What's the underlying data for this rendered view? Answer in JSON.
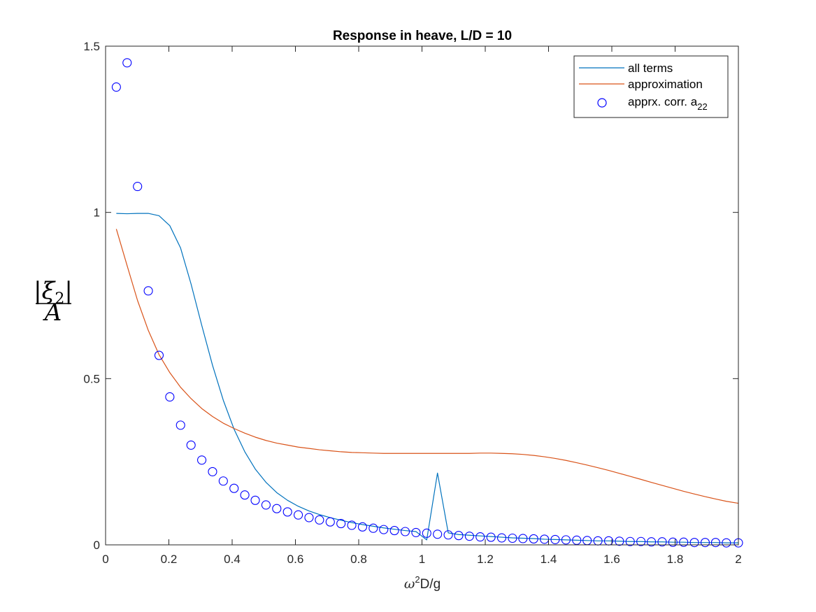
{
  "chart_data": {
    "type": "line",
    "title": "Response in heave, L/D = 10",
    "xlabel": {
      "base": "ω",
      "sup": "2",
      "rest": "D/g"
    },
    "ylabel": {
      "num_left": "|",
      "num_sym": "ξ",
      "num_sub": "2",
      "num_right": "|",
      "den": "A"
    },
    "xlim": [
      0,
      2
    ],
    "ylim": [
      0,
      1.5
    ],
    "xticks": [
      0,
      0.2,
      0.4,
      0.6,
      0.8,
      1,
      1.2,
      1.4,
      1.6,
      1.8,
      2
    ],
    "xtick_labels": [
      "0",
      "0.2",
      "0.4",
      "0.6",
      "0.8",
      "1",
      "1.2",
      "1.4",
      "1.6",
      "1.8",
      "2"
    ],
    "yticks": [
      0,
      0.5,
      1,
      1.5
    ],
    "ytick_labels": [
      "0",
      "0.5",
      "1",
      "1.5"
    ],
    "grid": false,
    "legend_position": "top-right",
    "series": [
      {
        "name": "all terms",
        "style": "line",
        "color": "#0072bd",
        "x": [
          0.034,
          0.068,
          0.101,
          0.135,
          0.169,
          0.203,
          0.237,
          0.27,
          0.304,
          0.338,
          0.372,
          0.406,
          0.44,
          0.473,
          0.507,
          0.541,
          0.575,
          0.609,
          0.643,
          0.676,
          0.71,
          0.744,
          0.778,
          0.812,
          0.846,
          0.879,
          0.913,
          0.947,
          0.981,
          1.015,
          1.049,
          1.083,
          1.116,
          1.15,
          1.184,
          1.218,
          1.252,
          1.286,
          1.319,
          1.353,
          1.387,
          1.421,
          1.455,
          1.489,
          1.522,
          1.556,
          1.59,
          1.624,
          1.658,
          1.692,
          1.725,
          1.759,
          1.793,
          1.827,
          1.861,
          1.895,
          1.928,
          1.962,
          2.0
        ],
        "y": [
          0.997,
          0.996,
          0.997,
          0.997,
          0.99,
          0.96,
          0.893,
          0.785,
          0.66,
          0.54,
          0.435,
          0.348,
          0.28,
          0.228,
          0.188,
          0.157,
          0.134,
          0.116,
          0.102,
          0.091,
          0.082,
          0.074,
          0.067,
          0.061,
          0.056,
          0.051,
          0.047,
          0.043,
          0.04,
          0.015,
          0.216,
          0.036,
          0.031,
          0.029,
          0.027,
          0.025,
          0.023,
          0.021,
          0.02,
          0.019,
          0.017,
          0.016,
          0.015,
          0.014,
          0.013,
          0.012,
          0.012,
          0.011,
          0.01,
          0.01,
          0.009,
          0.009,
          0.008,
          0.008,
          0.007,
          0.007,
          0.007,
          0.006,
          0.006
        ]
      },
      {
        "name": "approximation",
        "style": "line",
        "color": "#d95319",
        "x": [
          0.034,
          0.068,
          0.101,
          0.135,
          0.169,
          0.203,
          0.237,
          0.27,
          0.304,
          0.338,
          0.372,
          0.406,
          0.44,
          0.473,
          0.507,
          0.541,
          0.575,
          0.609,
          0.643,
          0.676,
          0.71,
          0.744,
          0.778,
          0.812,
          0.846,
          0.879,
          0.913,
          0.947,
          0.981,
          1.015,
          1.049,
          1.083,
          1.116,
          1.15,
          1.184,
          1.218,
          1.252,
          1.286,
          1.319,
          1.353,
          1.387,
          1.421,
          1.455,
          1.489,
          1.522,
          1.556,
          1.59,
          1.624,
          1.658,
          1.692,
          1.725,
          1.759,
          1.793,
          1.827,
          1.861,
          1.895,
          1.928,
          1.962,
          2.0
        ],
        "y": [
          0.95,
          0.84,
          0.735,
          0.645,
          0.572,
          0.518,
          0.474,
          0.44,
          0.41,
          0.386,
          0.366,
          0.35,
          0.336,
          0.324,
          0.314,
          0.306,
          0.3,
          0.294,
          0.29,
          0.286,
          0.283,
          0.28,
          0.278,
          0.277,
          0.276,
          0.275,
          0.275,
          0.275,
          0.275,
          0.275,
          0.275,
          0.275,
          0.275,
          0.275,
          0.276,
          0.276,
          0.275,
          0.274,
          0.272,
          0.269,
          0.265,
          0.26,
          0.254,
          0.247,
          0.24,
          0.232,
          0.224,
          0.215,
          0.206,
          0.197,
          0.188,
          0.179,
          0.17,
          0.161,
          0.153,
          0.145,
          0.138,
          0.131,
          0.125
        ]
      },
      {
        "name": "apprx. corr. a",
        "name_sub": "22",
        "style": "markers",
        "color": "#0000ff",
        "x": [
          0.034,
          0.068,
          0.101,
          0.135,
          0.169,
          0.203,
          0.237,
          0.27,
          0.304,
          0.338,
          0.372,
          0.406,
          0.44,
          0.473,
          0.507,
          0.541,
          0.575,
          0.609,
          0.643,
          0.676,
          0.71,
          0.744,
          0.778,
          0.812,
          0.846,
          0.879,
          0.913,
          0.947,
          0.981,
          1.015,
          1.049,
          1.083,
          1.116,
          1.15,
          1.184,
          1.218,
          1.252,
          1.286,
          1.319,
          1.353,
          1.387,
          1.421,
          1.455,
          1.489,
          1.522,
          1.556,
          1.59,
          1.624,
          1.658,
          1.692,
          1.725,
          1.759,
          1.793,
          1.827,
          1.861,
          1.895,
          1.928,
          1.962,
          2.0
        ],
        "y": [
          1.377,
          1.45,
          1.078,
          0.764,
          0.57,
          0.445,
          0.36,
          0.3,
          0.255,
          0.22,
          0.192,
          0.17,
          0.15,
          0.134,
          0.12,
          0.109,
          0.099,
          0.09,
          0.082,
          0.075,
          0.069,
          0.064,
          0.059,
          0.054,
          0.05,
          0.046,
          0.043,
          0.04,
          0.037,
          0.035,
          0.032,
          0.03,
          0.028,
          0.026,
          0.024,
          0.023,
          0.021,
          0.02,
          0.019,
          0.018,
          0.017,
          0.016,
          0.015,
          0.014,
          0.013,
          0.012,
          0.012,
          0.011,
          0.01,
          0.01,
          0.009,
          0.009,
          0.008,
          0.008,
          0.007,
          0.007,
          0.007,
          0.006,
          0.006
        ]
      }
    ]
  }
}
